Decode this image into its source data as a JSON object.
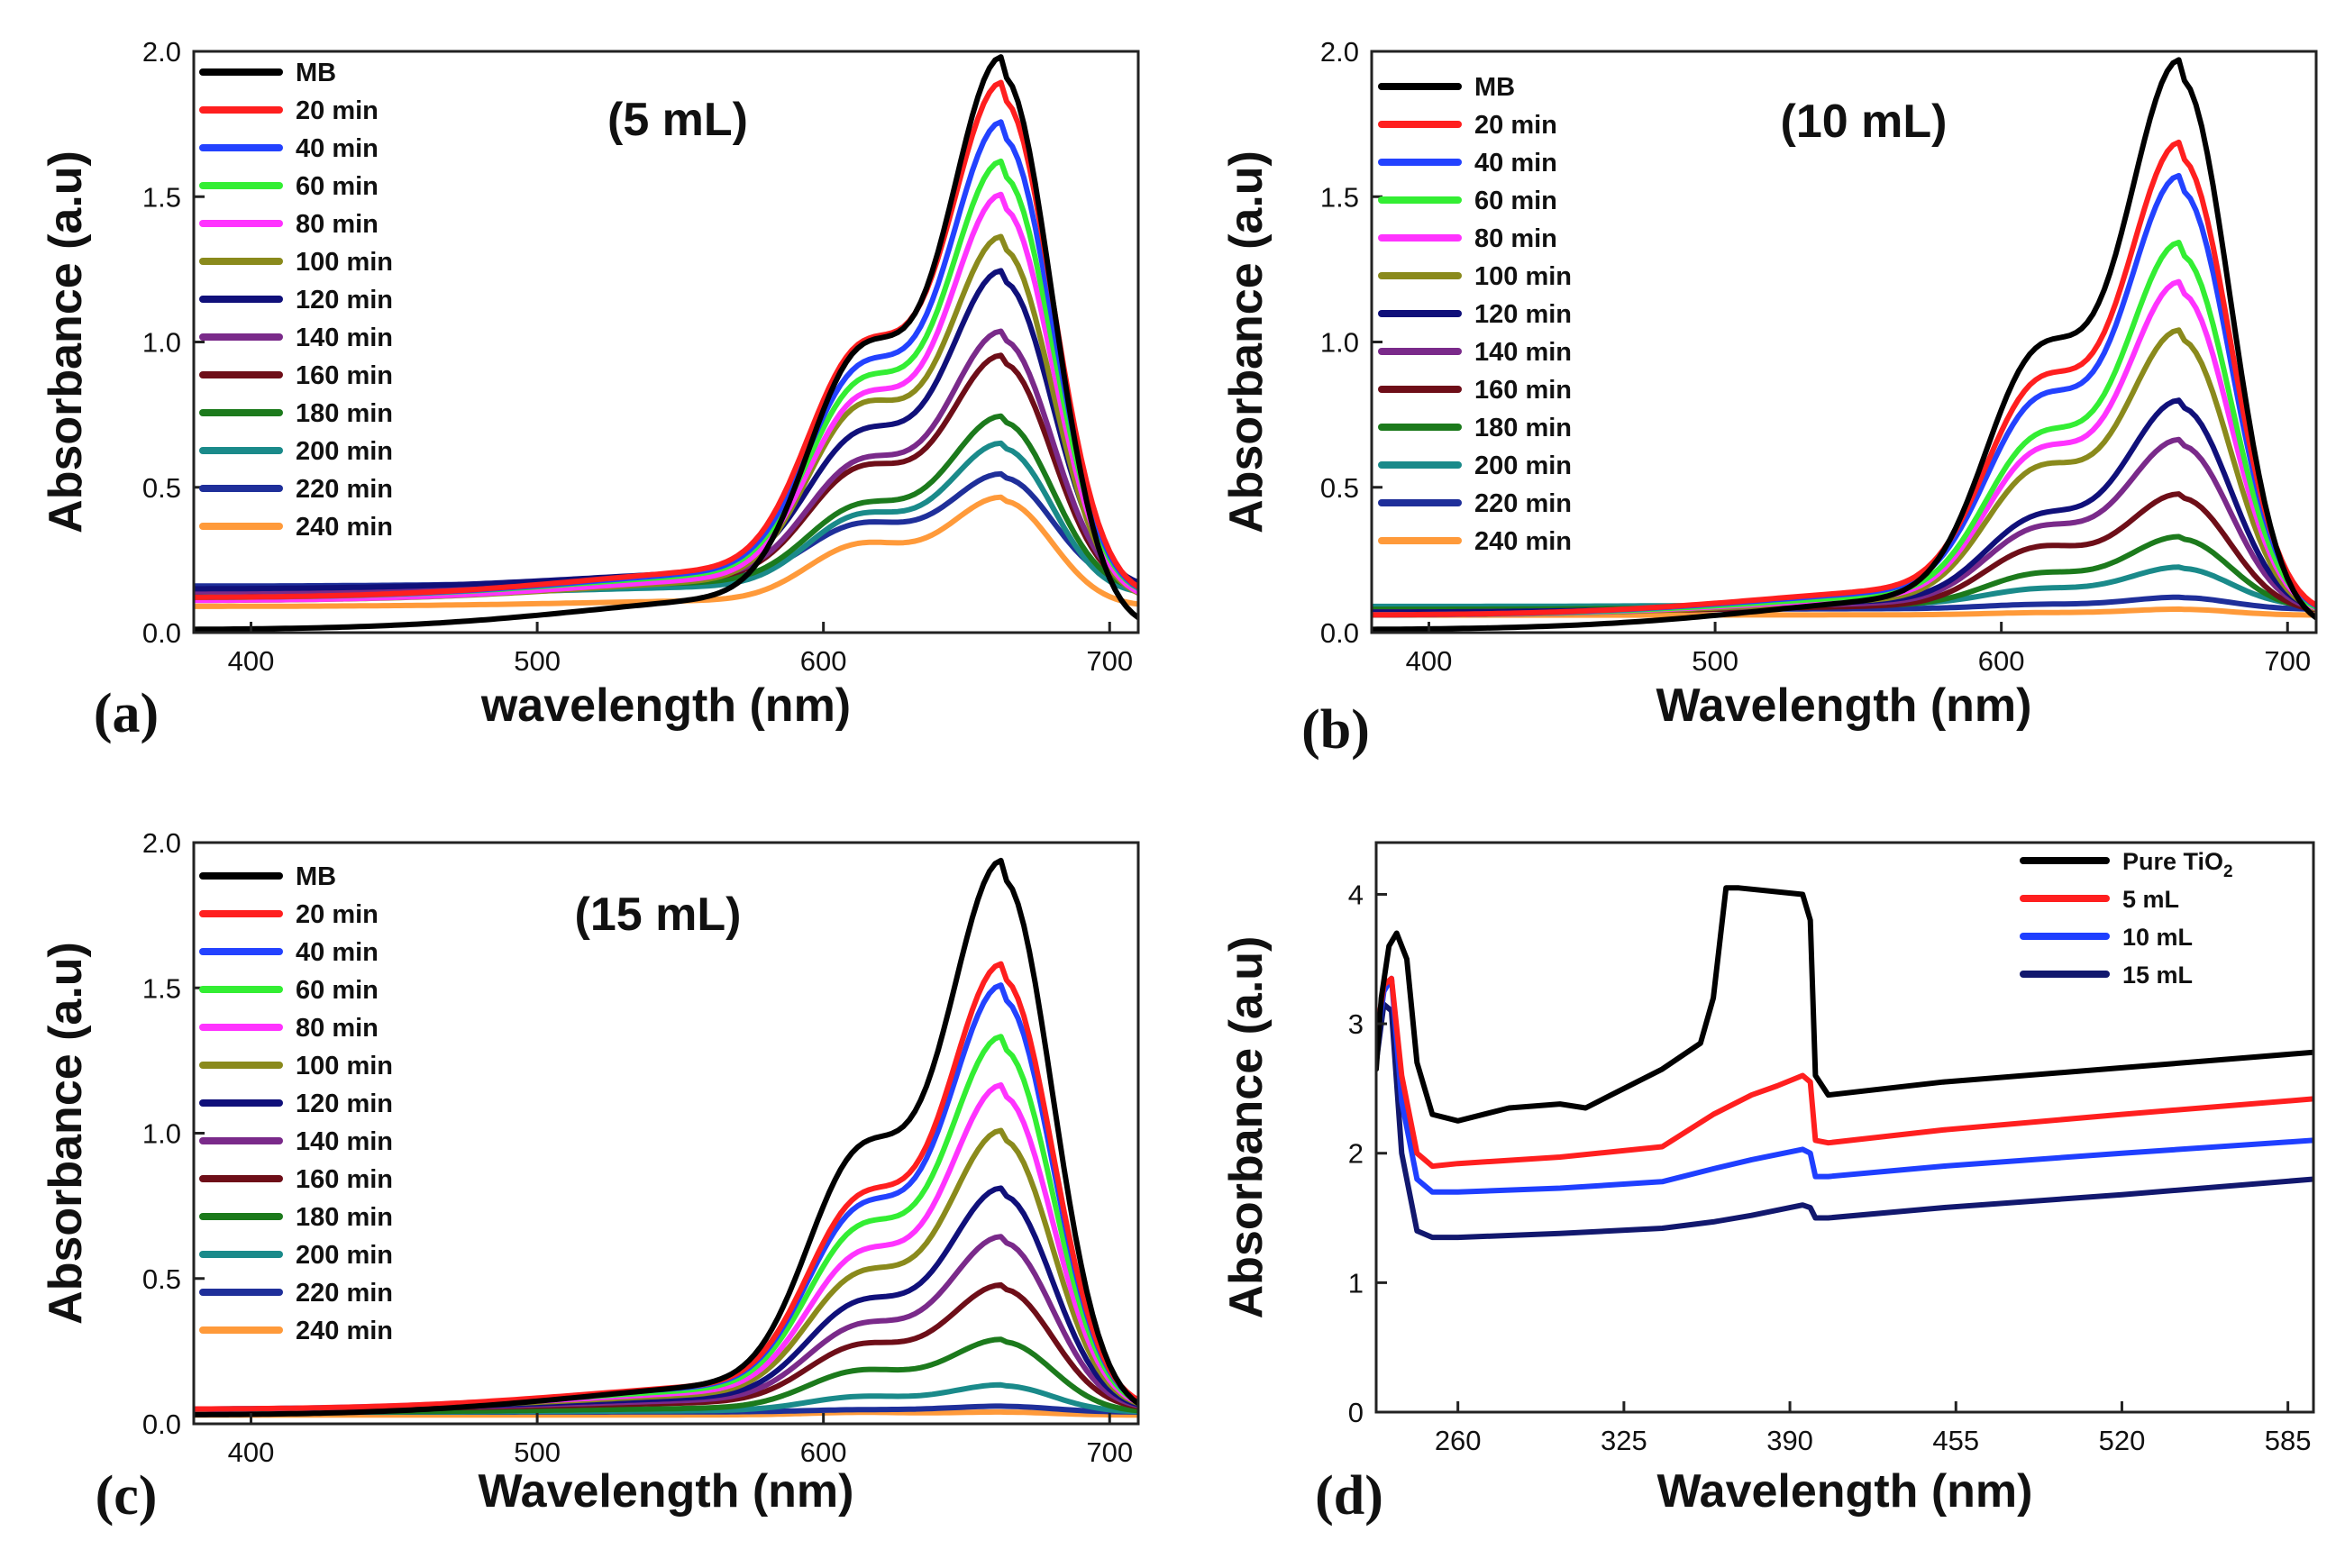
{
  "figure_title": "",
  "chart_data": [
    {
      "panel": "(a)",
      "type": "line",
      "annotation": "(5 mL)",
      "xlabel": "wavelength (nm)",
      "ylabel": "Absorbance (a.u)",
      "xlim": [
        380,
        710
      ],
      "ylim": [
        0,
        2
      ],
      "xticks": [
        "400",
        "500",
        "600",
        "700"
      ],
      "yticks": [
        "0.0",
        "0.5",
        "1.0",
        "1.5",
        "2.0"
      ],
      "legend": "top-left",
      "peak_nm": 663,
      "shoulder_nm": 612,
      "series": [
        {
          "name": "MB",
          "color": "#000000",
          "peak": 1.9,
          "shoulder": 1.1,
          "base": 0.01
        },
        {
          "name": "20 min",
          "color": "#ff1f1f",
          "peak": 1.82,
          "shoulder": 1.1,
          "base": 0.12
        },
        {
          "name": "40 min",
          "color": "#2342ff",
          "peak": 1.69,
          "shoulder": 1.02,
          "base": 0.12
        },
        {
          "name": "60 min",
          "color": "#33ee33",
          "peak": 1.56,
          "shoulder": 0.96,
          "base": 0.12
        },
        {
          "name": "80 min",
          "color": "#ff33ff",
          "peak": 1.45,
          "shoulder": 0.9,
          "base": 0.11
        },
        {
          "name": "100 min",
          "color": "#8a8a1c",
          "peak": 1.31,
          "shoulder": 0.86,
          "base": 0.11
        },
        {
          "name": "120 min",
          "color": "#10107a",
          "peak": 1.2,
          "shoulder": 0.76,
          "base": 0.15
        },
        {
          "name": "140 min",
          "color": "#7a2a8a",
          "peak": 1.0,
          "shoulder": 0.65,
          "base": 0.14
        },
        {
          "name": "160 min",
          "color": "#6e0e18",
          "peak": 0.92,
          "shoulder": 0.62,
          "base": 0.14
        },
        {
          "name": "180 min",
          "color": "#1c7a1c",
          "peak": 0.72,
          "shoulder": 0.48,
          "base": 0.14
        },
        {
          "name": "200 min",
          "color": "#1a8a8a",
          "peak": 0.63,
          "shoulder": 0.44,
          "base": 0.13
        },
        {
          "name": "220 min",
          "color": "#1f2f9a",
          "peak": 0.53,
          "shoulder": 0.4,
          "base": 0.16
        },
        {
          "name": "240 min",
          "color": "#ff9a3a",
          "peak": 0.45,
          "shoulder": 0.33,
          "base": 0.09
        }
      ]
    },
    {
      "panel": "(b)",
      "type": "line",
      "annotation": "(10 mL)",
      "xlabel": "Wavelength (nm)",
      "ylabel": "Absorbance (a.u)",
      "xlim": [
        380,
        710
      ],
      "ylim": [
        0,
        2
      ],
      "xticks": [
        "400",
        "500",
        "600",
        "700"
      ],
      "yticks": [
        "0.0",
        "0.5",
        "1.0",
        "1.5",
        "2.0"
      ],
      "legend": "top-left",
      "peak_nm": 663,
      "shoulder_nm": 612,
      "series": [
        {
          "name": "MB",
          "color": "#000000",
          "peak": 1.89,
          "shoulder": 1.1,
          "base": 0.01
        },
        {
          "name": "20 min",
          "color": "#ff1f1f",
          "peak": 1.62,
          "shoulder": 0.97,
          "base": 0.06
        },
        {
          "name": "40 min",
          "color": "#2342ff",
          "peak": 1.51,
          "shoulder": 0.9,
          "base": 0.06
        },
        {
          "name": "60 min",
          "color": "#33ee33",
          "peak": 1.29,
          "shoulder": 0.76,
          "base": 0.06
        },
        {
          "name": "80 min",
          "color": "#ff33ff",
          "peak": 1.16,
          "shoulder": 0.7,
          "base": 0.06
        },
        {
          "name": "100 min",
          "color": "#8a8a1c",
          "peak": 1.0,
          "shoulder": 0.63,
          "base": 0.06
        },
        {
          "name": "120 min",
          "color": "#10107a",
          "peak": 0.77,
          "shoulder": 0.45,
          "base": 0.07
        },
        {
          "name": "140 min",
          "color": "#7a2a8a",
          "peak": 0.64,
          "shoulder": 0.4,
          "base": 0.07
        },
        {
          "name": "160 min",
          "color": "#6e0e18",
          "peak": 0.46,
          "shoulder": 0.32,
          "base": 0.07
        },
        {
          "name": "180 min",
          "color": "#1c7a1c",
          "peak": 0.32,
          "shoulder": 0.22,
          "base": 0.08
        },
        {
          "name": "200 min",
          "color": "#1a8a8a",
          "peak": 0.22,
          "shoulder": 0.16,
          "base": 0.09
        },
        {
          "name": "220 min",
          "color": "#1f2f9a",
          "peak": 0.12,
          "shoulder": 0.1,
          "base": 0.08
        },
        {
          "name": "240 min",
          "color": "#ff9a3a",
          "peak": 0.08,
          "shoulder": 0.07,
          "base": 0.06
        }
      ]
    },
    {
      "panel": "(c)",
      "type": "line",
      "annotation": "(15 mL)",
      "xlabel": "Wavelength (nm)",
      "ylabel": "Absorbance (a.u)",
      "xlim": [
        380,
        710
      ],
      "ylim": [
        0,
        2
      ],
      "xticks": [
        "400",
        "500",
        "600",
        "700"
      ],
      "yticks": [
        "0.0",
        "0.5",
        "1.0",
        "1.5",
        "2.0"
      ],
      "legend": "top-left",
      "peak_nm": 663,
      "shoulder_nm": 612,
      "series": [
        {
          "name": "MB",
          "color": "#000000",
          "peak": 1.86,
          "shoulder": 1.07,
          "base": 0.03
        },
        {
          "name": "20 min",
          "color": "#ff1f1f",
          "peak": 1.52,
          "shoulder": 0.88,
          "base": 0.05
        },
        {
          "name": "40 min",
          "color": "#2342ff",
          "peak": 1.45,
          "shoulder": 0.84,
          "base": 0.05
        },
        {
          "name": "60 min",
          "color": "#33ee33",
          "peak": 1.28,
          "shoulder": 0.76,
          "base": 0.05
        },
        {
          "name": "80 min",
          "color": "#ff33ff",
          "peak": 1.12,
          "shoulder": 0.66,
          "base": 0.05
        },
        {
          "name": "100 min",
          "color": "#8a8a1c",
          "peak": 0.97,
          "shoulder": 0.58,
          "base": 0.05
        },
        {
          "name": "120 min",
          "color": "#10107a",
          "peak": 0.78,
          "shoulder": 0.47,
          "base": 0.05
        },
        {
          "name": "140 min",
          "color": "#7a2a8a",
          "peak": 0.62,
          "shoulder": 0.38,
          "base": 0.05
        },
        {
          "name": "160 min",
          "color": "#6e0e18",
          "peak": 0.46,
          "shoulder": 0.3,
          "base": 0.05
        },
        {
          "name": "180 min",
          "color": "#1c7a1c",
          "peak": 0.28,
          "shoulder": 0.2,
          "base": 0.04
        },
        {
          "name": "200 min",
          "color": "#1a8a8a",
          "peak": 0.13,
          "shoulder": 0.1,
          "base": 0.04
        },
        {
          "name": "220 min",
          "color": "#1f2f9a",
          "peak": 0.06,
          "shoulder": 0.05,
          "base": 0.04
        },
        {
          "name": "240 min",
          "color": "#ff9a3a",
          "peak": 0.04,
          "shoulder": 0.04,
          "base": 0.03
        }
      ]
    },
    {
      "panel": "(d)",
      "type": "line",
      "xlabel": "Wavelength (nm)",
      "ylabel": "Absorbance (a.u)",
      "xlim": [
        228,
        595
      ],
      "ylim": [
        0,
        4.4
      ],
      "xticks": [
        "260",
        "325",
        "390",
        "455",
        "520",
        "585"
      ],
      "yticks": [
        "0",
        "1",
        "2",
        "3",
        "4"
      ],
      "legend": "top-right",
      "series": [
        {
          "name": "Pure TiO",
          "subscript": "2",
          "color": "#000000",
          "x": [
            228,
            230,
            233,
            236,
            240,
            244,
            250,
            260,
            280,
            300,
            310,
            320,
            340,
            355,
            360,
            365,
            370,
            385,
            395,
            398,
            400,
            405,
            450,
            520,
            595
          ],
          "y": [
            2.65,
            3.2,
            3.6,
            3.7,
            3.5,
            2.7,
            2.3,
            2.25,
            2.35,
            2.38,
            2.35,
            2.45,
            2.65,
            2.85,
            3.2,
            4.05,
            4.05,
            4.02,
            4.0,
            3.8,
            2.6,
            2.45,
            2.55,
            2.66,
            2.78
          ]
        },
        {
          "name": "5 mL",
          "color": "#ff1f1f",
          "x": [
            228,
            231,
            234,
            238,
            244,
            250,
            260,
            300,
            340,
            360,
            375,
            385,
            395,
            398,
            400,
            405,
            450,
            520,
            595
          ],
          "y": [
            2.9,
            3.3,
            3.35,
            2.6,
            2.0,
            1.9,
            1.92,
            1.97,
            2.05,
            2.3,
            2.45,
            2.52,
            2.6,
            2.55,
            2.1,
            2.08,
            2.18,
            2.3,
            2.42
          ]
        },
        {
          "name": "10 mL",
          "color": "#1f3fff",
          "x": [
            228,
            231,
            234,
            238,
            244,
            250,
            260,
            300,
            340,
            360,
            375,
            385,
            395,
            398,
            400,
            405,
            450,
            520,
            595
          ],
          "y": [
            2.8,
            3.25,
            3.35,
            2.4,
            1.8,
            1.7,
            1.7,
            1.73,
            1.78,
            1.88,
            1.95,
            1.99,
            2.03,
            2.0,
            1.82,
            1.82,
            1.9,
            2.0,
            2.1
          ]
        },
        {
          "name": "15 mL",
          "color": "#12186e",
          "x": [
            228,
            231,
            234,
            238,
            244,
            250,
            260,
            300,
            340,
            360,
            375,
            385,
            395,
            398,
            400,
            405,
            450,
            520,
            595
          ],
          "y": [
            2.7,
            3.15,
            3.1,
            2.0,
            1.4,
            1.35,
            1.35,
            1.38,
            1.42,
            1.47,
            1.52,
            1.56,
            1.6,
            1.58,
            1.5,
            1.5,
            1.58,
            1.68,
            1.8
          ]
        }
      ]
    }
  ]
}
